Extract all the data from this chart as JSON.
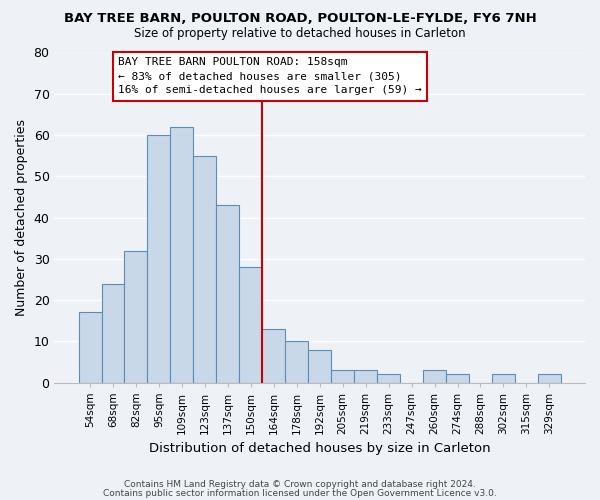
{
  "title": "BAY TREE BARN, POULTON ROAD, POULTON-LE-FYLDE, FY6 7NH",
  "subtitle": "Size of property relative to detached houses in Carleton",
  "xlabel": "Distribution of detached houses by size in Carleton",
  "ylabel": "Number of detached properties",
  "bin_labels": [
    "54sqm",
    "68sqm",
    "82sqm",
    "95sqm",
    "109sqm",
    "123sqm",
    "137sqm",
    "150sqm",
    "164sqm",
    "178sqm",
    "192sqm",
    "205sqm",
    "219sqm",
    "233sqm",
    "247sqm",
    "260sqm",
    "274sqm",
    "288sqm",
    "302sqm",
    "315sqm",
    "329sqm"
  ],
  "bar_values": [
    17,
    24,
    32,
    60,
    62,
    55,
    43,
    28,
    13,
    10,
    8,
    3,
    3,
    2,
    0,
    3,
    2,
    0,
    2,
    0,
    2
  ],
  "bar_color": "#c8d8e8",
  "bar_edge_color": "#5b8db8",
  "vline_x": 8.0,
  "vline_color": "#cc0000",
  "ylim": [
    0,
    80
  ],
  "yticks": [
    0,
    10,
    20,
    30,
    40,
    50,
    60,
    70,
    80
  ],
  "annotation_title": "BAY TREE BARN POULTON ROAD: 158sqm",
  "annotation_line1": "← 83% of detached houses are smaller (305)",
  "annotation_line2": "16% of semi-detached houses are larger (59) →",
  "annotation_box_color": "#ffffff",
  "annotation_box_edge": "#cc0000",
  "footer1": "Contains HM Land Registry data © Crown copyright and database right 2024.",
  "footer2": "Contains public sector information licensed under the Open Government Licence v3.0.",
  "bg_color": "#eef2f7",
  "grid_color": "#ffffff"
}
